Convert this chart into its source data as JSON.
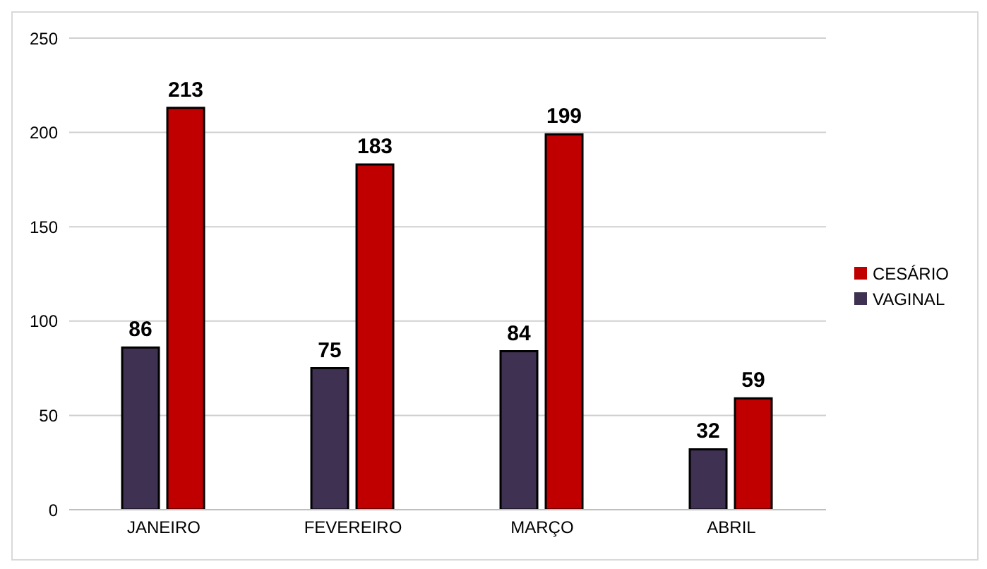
{
  "chart_data": {
    "type": "bar",
    "categories": [
      "JANEIRO",
      "FEVEREIRO",
      "MARÇO",
      "ABRIL"
    ],
    "series": [
      {
        "name": "VAGINAL",
        "color": "#3f3151",
        "values": [
          86,
          75,
          84,
          32
        ]
      },
      {
        "name": "CESÁRIO",
        "color": "#c00000",
        "values": [
          213,
          183,
          199,
          59
        ]
      }
    ],
    "ylim": [
      0,
      250
    ],
    "yticks": [
      0,
      50,
      100,
      150,
      200,
      250
    ],
    "grid": "y",
    "legend": "right",
    "data_labels": true
  }
}
